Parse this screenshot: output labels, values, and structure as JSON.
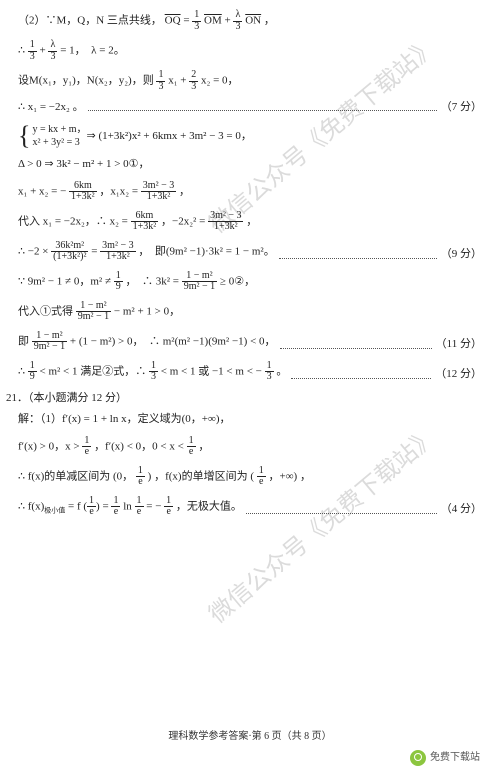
{
  "watermark": "微信公众号《免费下载站》",
  "footer": "理科数学参考答案·第 6 页（共 8 页）",
  "siglabel": "免费下载站",
  "scores": {
    "s7": "（7 分）",
    "s9": "（9 分）",
    "s11": "（11 分）",
    "s12": "（12 分）",
    "s4": "（4 分）"
  },
  "lines": {
    "l1a": "（2）∵M，Q，N 三点共线，",
    "l1b_eq": "= ",
    "l1c": " + ",
    "l1d": "，",
    "OQ": "OQ",
    "OM": "OM",
    "ON": "ON",
    "l2a": "∴ ",
    "l2b": " + ",
    "l2c": " = 1，　λ = 2。",
    "l3a": "设M(x₁，y₁)，N(x₂，y₂)，则",
    "l3b": "x₁ + ",
    "l3c": "x₂ = 0，",
    "l4": "∴ x₁ = −2x₂ 。",
    "l5s1": "y = kx + m，",
    "l5s2": "x² + 3y² = 3",
    "l5b": " ⇒ (1+3k²)x² + 6kmx + 3m² − 3 = 0，",
    "l6": "Δ > 0 ⇒ 3k² − m² + 1 > 0①，",
    "l7a": "x₁ + x₂ = −",
    "l7b": "，x₁x₂ = ",
    "l7c": "，",
    "l8a": "代入 x₁ = −2x₂，∴ x₂ = ",
    "l8b": "，−2x₂² = ",
    "l8c": "，",
    "l9a": "∴ −2 × ",
    "l9b": " = ",
    "l9c": "，　即(9m² −1)·3k² = 1 − m²。",
    "l10a": "∵ 9m² − 1 ≠ 0，m² ≠ ",
    "l10b": "，　∴ 3k² = ",
    "l10c": " ≥ 0②，",
    "l11a": "代入①式得 ",
    "l11b": " − m² + 1 > 0，",
    "l12a": "即 ",
    "l12b": " + (1 − m²) > 0，　∴ m²(m² −1)(9m² −1) < 0，",
    "l13a": "∴ ",
    "l13b": " < m² < 1 满足②式，∴ ",
    "l13c": " < m < 1 或 −1 < m < − ",
    "l13d": "。",
    "q21": "21．（本小题满分 12 分）",
    "l14": "解：（1）f′(x) = 1 + ln x，定义域为(0，+∞)，",
    "l15a": "f′(x) > 0，x > ",
    "l15b": "，f′(x) < 0，0 < x < ",
    "l15c": "，",
    "l16a": "∴ f(x)的单减区间为",
    "l16b": "，f(x)的单增区间为",
    "l16c": "，",
    "l17a": "∴ f(x)",
    "l17sub": "极小值",
    "l17b": " = f",
    "l17c": " = ",
    "l17d": "ln",
    "l17e": " = −",
    "l17f": "，无极大值。",
    "f_1_3": {
      "n": "1",
      "d": "3"
    },
    "f_l_3": {
      "n": "λ",
      "d": "3"
    },
    "f_2_3": {
      "n": "2",
      "d": "3"
    },
    "f_6km": {
      "n": "6km",
      "d": "1+3k²"
    },
    "f_3m2": {
      "n": "3m² − 3",
      "d": "1+3k²"
    },
    "f_6km2": {
      "n": "6km",
      "d": "1+3k²"
    },
    "f_36": {
      "n": "36k²m²",
      "d": "(1+3k²)²"
    },
    "f_1_9": {
      "n": "1",
      "d": "9"
    },
    "f_ratio": {
      "n": "1 − m²",
      "d": "9m² − 1"
    },
    "f_ratio2": {
      "n": "1 − m²",
      "d": "9m² − 1"
    },
    "f_ratio3": {
      "n": "1 − m²",
      "d": "9m² − 1"
    },
    "f_1_3b": {
      "n": "1",
      "d": "3"
    },
    "f_1_e": {
      "n": "1",
      "d": "e"
    },
    "interval1": "(0，",
    "interval2": ")",
    "interval3": "(",
    "interval4": "，+∞)"
  }
}
